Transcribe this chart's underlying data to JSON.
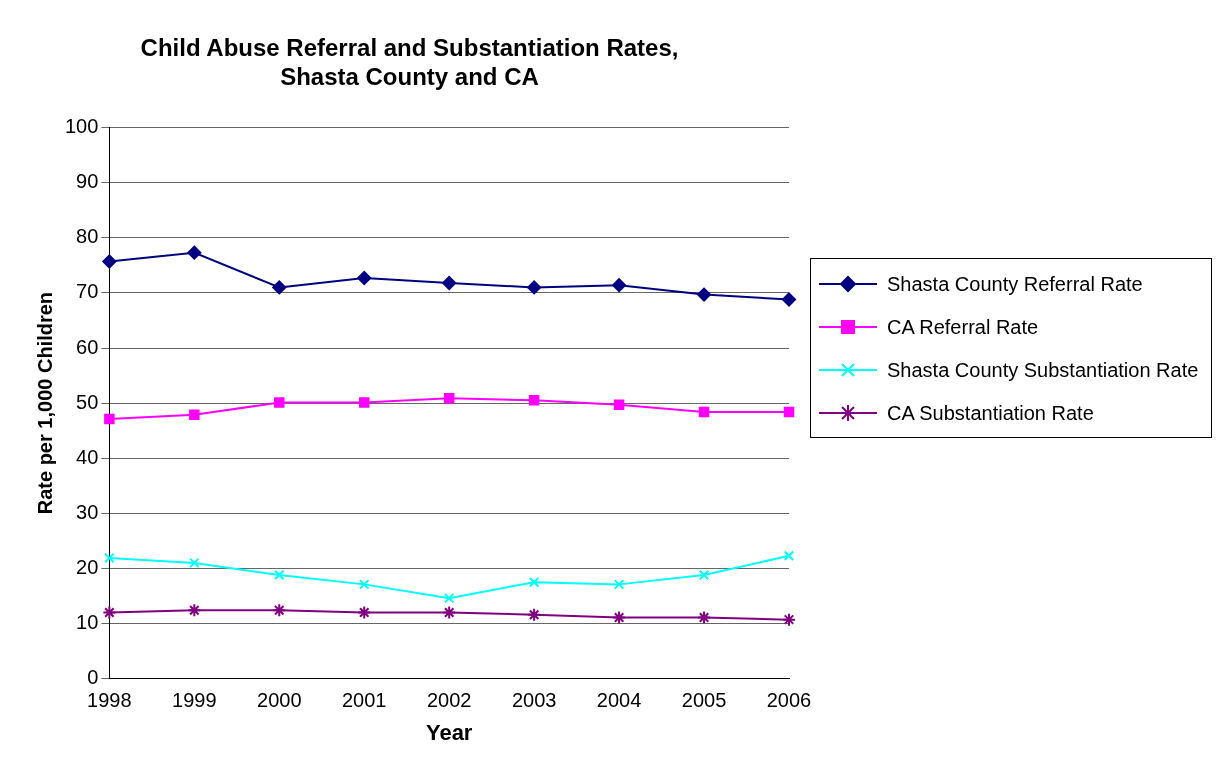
{
  "chart_data": {
    "type": "line",
    "title": "Child Abuse Referral and Substantiation Rates, Shasta County and CA",
    "xlabel": "Year",
    "ylabel": "Rate per 1,000 Children",
    "categories": [
      "1998",
      "1999",
      "2000",
      "2001",
      "2002",
      "2003",
      "2004",
      "2005",
      "2006"
    ],
    "series": [
      {
        "name": "Shasta County Referral Rate",
        "color": "#000080",
        "marker": "diamond",
        "values": [
          75.7,
          77.3,
          71,
          72.7,
          71.8,
          71,
          71.4,
          69.7,
          68.8
        ]
      },
      {
        "name": "CA Referral Rate",
        "color": "#ff00ff",
        "marker": "square",
        "values": [
          47.1,
          47.9,
          50.1,
          50.1,
          50.9,
          50.5,
          49.7,
          48.4,
          48.4
        ]
      },
      {
        "name": "Shasta County Substantiation Rate",
        "color": "#00ffff",
        "marker": "cross",
        "values": [
          21.9,
          21,
          18.8,
          17.1,
          14.6,
          17.5,
          17.1,
          18.8,
          22.3
        ]
      },
      {
        "name": "CA Substantiation Rate",
        "color": "#800080",
        "marker": "cross",
        "values": [
          12,
          12.4,
          12.4,
          12,
          12,
          11.6,
          11.1,
          11.1,
          10.7
        ]
      }
    ],
    "ylim": [
      0,
      100
    ],
    "yticks": [
      0,
      10,
      20,
      30,
      40,
      50,
      60,
      70,
      80,
      90,
      100
    ],
    "grid": "y",
    "legend": "right",
    "line_style": "solid"
  }
}
